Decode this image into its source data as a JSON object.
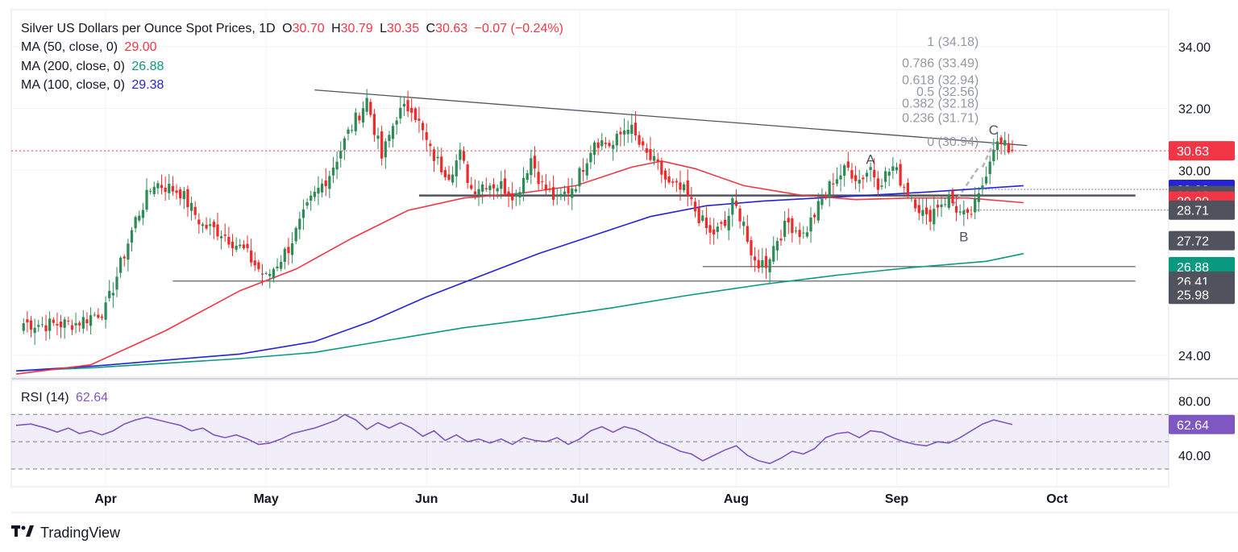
{
  "header": {
    "title": "Silver US Dollars per Ounce Spot Prices, 1D",
    "open_label": "O",
    "open": "30.70",
    "high_label": "H",
    "high": "30.79",
    "low_label": "L",
    "low": "30.35",
    "close_label": "C",
    "close": "30.63",
    "change": "−0.07 (−0.24%)",
    "ma50_label": "MA (50, close, 0)",
    "ma50_value": "29.00",
    "ma200_label": "MA (200, close, 0)",
    "ma200_value": "26.88",
    "ma100_label": "MA (100, close, 0)",
    "ma100_value": "29.38"
  },
  "rsi": {
    "label": "RSI (14)",
    "value": "62.64"
  },
  "brand": "TradingView",
  "colors": {
    "up": "#26a69a",
    "upBody": "#2e8b57",
    "down": "#ef2a2a",
    "ma50": "#f23645",
    "ma100": "#2424d6",
    "ma200": "#089981",
    "rsi": "#7e57c2"
  },
  "chart_data": {
    "type": "candlestick",
    "y_ticks": [
      "34.00",
      "32.00",
      "30.00",
      "24.00"
    ],
    "ylim": [
      23.3,
      35.2
    ],
    "rsi_ticks": [
      "80.00",
      "40.00"
    ],
    "rsi_levels": [
      70,
      50,
      30
    ],
    "x_labels": [
      "Apr",
      "May",
      "Jun",
      "Jul",
      "Aug",
      "Sep",
      "Oct"
    ],
    "x_label_index": [
      24,
      67,
      110,
      151,
      193,
      236,
      279
    ],
    "price_labels": [
      {
        "text": "30.63",
        "value": 30.63,
        "color": "#f23645"
      },
      {
        "text": "29.38",
        "value": 29.38,
        "color": "#2424d6"
      },
      {
        "text": "29.18",
        "value": 29.18,
        "color": "#50535e"
      },
      {
        "text": "29.00",
        "value": 29.0,
        "color": "#f23645"
      },
      {
        "text": "28.71",
        "value": 28.71,
        "color": "#50535e"
      },
      {
        "text": "27.72",
        "value": 27.72,
        "color": "#50535e"
      },
      {
        "text": "26.88",
        "value": 26.88,
        "color": "#089981"
      },
      {
        "text": "26.41",
        "value": 26.41,
        "color": "#50535e"
      },
      {
        "text": "25.98",
        "value": 25.98,
        "color": "#50535e"
      }
    ],
    "fib_levels": [
      {
        "label": "1 (34.18)",
        "value": 34.18
      },
      {
        "label": "0.786 (33.49)",
        "value": 33.49
      },
      {
        "label": "0.618 (32.94)",
        "value": 32.94
      },
      {
        "label": "0.5 (32.56)",
        "value": 32.56
      },
      {
        "label": "0.382 (32.18)",
        "value": 32.18
      },
      {
        "label": "0.236 (31.71)",
        "value": 31.71
      },
      {
        "label": "0 (30.94)",
        "value": 30.94
      }
    ],
    "wave_labels": [
      {
        "text": "A",
        "index": 229,
        "value": 30.2
      },
      {
        "text": "B",
        "index": 254,
        "value": 27.7
      },
      {
        "text": "C",
        "index": 262,
        "value": 31.15
      }
    ],
    "trendline": {
      "from": [
        80,
        32.6
      ],
      "to": [
        271,
        30.8
      ]
    },
    "support_lines": [
      {
        "from": [
          108,
          29.18
        ],
        "to": [
          300,
          29.18
        ],
        "bold": true
      },
      {
        "from": [
          42,
          26.41
        ],
        "to": [
          300,
          26.41
        ],
        "bold": false
      },
      {
        "from": [
          184,
          26.88
        ],
        "to": [
          300,
          26.88
        ],
        "bold": false
      }
    ],
    "swing_points": [
      [
        2,
        25.05
      ],
      [
        8,
        25.0
      ],
      [
        16,
        25.05
      ],
      [
        24,
        25.5
      ],
      [
        29,
        27.3
      ],
      [
        32,
        28.4
      ],
      [
        37,
        29.6
      ],
      [
        44,
        29.3
      ],
      [
        50,
        28.2
      ],
      [
        55,
        28.0
      ],
      [
        61,
        27.4
      ],
      [
        67,
        26.5
      ],
      [
        73,
        27.5
      ],
      [
        79,
        29.0
      ],
      [
        84,
        29.9
      ],
      [
        89,
        31.2
      ],
      [
        94,
        32.3
      ],
      [
        98,
        30.4
      ],
      [
        102,
        31.8
      ],
      [
        106,
        32.1
      ],
      [
        111,
        30.6
      ],
      [
        114,
        30.1
      ],
      [
        116,
        29.9
      ],
      [
        119,
        30.5
      ],
      [
        122,
        29.4
      ],
      [
        126,
        29.6
      ],
      [
        130,
        29.5
      ],
      [
        134,
        29.2
      ],
      [
        138,
        30.4
      ],
      [
        141,
        29.5
      ],
      [
        145,
        29.0
      ],
      [
        150,
        29.6
      ],
      [
        155,
        31.0
      ],
      [
        160,
        30.8
      ],
      [
        164,
        31.5
      ],
      [
        168,
        30.6
      ],
      [
        172,
        30.1
      ],
      [
        175,
        29.5
      ],
      [
        179,
        29.3
      ],
      [
        182,
        28.7
      ],
      [
        186,
        27.9
      ],
      [
        190,
        28.2
      ],
      [
        192,
        28.9
      ],
      [
        195,
        28.4
      ],
      [
        197,
        27.0
      ],
      [
        201,
        27.0
      ],
      [
        204,
        27.8
      ],
      [
        207,
        28.3
      ],
      [
        211,
        27.9
      ],
      [
        215,
        28.8
      ],
      [
        219,
        29.7
      ],
      [
        223,
        30.05
      ],
      [
        226,
        29.7
      ],
      [
        229,
        30.1
      ],
      [
        231,
        29.6
      ],
      [
        235,
        30.1
      ],
      [
        238,
        29.5
      ],
      [
        241,
        29.0
      ],
      [
        244,
        28.4
      ],
      [
        247,
        28.9
      ],
      [
        250,
        29.1
      ],
      [
        253,
        28.6
      ],
      [
        255,
        28.4
      ],
      [
        258,
        29.1
      ],
      [
        260,
        30.0
      ],
      [
        262,
        30.85
      ],
      [
        264,
        30.8
      ],
      [
        267,
        30.63
      ]
    ],
    "ma50": [
      [
        0,
        23.4
      ],
      [
        20,
        23.7
      ],
      [
        40,
        24.8
      ],
      [
        60,
        26.1
      ],
      [
        75,
        26.8
      ],
      [
        90,
        27.8
      ],
      [
        105,
        28.7
      ],
      [
        120,
        29.1
      ],
      [
        135,
        29.25
      ],
      [
        150,
        29.5
      ],
      [
        165,
        30.1
      ],
      [
        173,
        30.3
      ],
      [
        182,
        30.05
      ],
      [
        195,
        29.5
      ],
      [
        210,
        29.2
      ],
      [
        225,
        29.05
      ],
      [
        240,
        29.1
      ],
      [
        255,
        29.1
      ],
      [
        270,
        28.95
      ]
    ],
    "ma100": [
      [
        0,
        23.5
      ],
      [
        20,
        23.65
      ],
      [
        40,
        23.85
      ],
      [
        60,
        24.05
      ],
      [
        80,
        24.45
      ],
      [
        95,
        25.1
      ],
      [
        110,
        25.9
      ],
      [
        125,
        26.6
      ],
      [
        140,
        27.3
      ],
      [
        155,
        27.9
      ],
      [
        170,
        28.5
      ],
      [
        185,
        28.85
      ],
      [
        200,
        29.0
      ],
      [
        215,
        29.1
      ],
      [
        230,
        29.2
      ],
      [
        245,
        29.3
      ],
      [
        270,
        29.5
      ]
    ],
    "ma200": [
      [
        0,
        23.5
      ],
      [
        20,
        23.6
      ],
      [
        40,
        23.75
      ],
      [
        60,
        23.9
      ],
      [
        80,
        24.1
      ],
      [
        100,
        24.5
      ],
      [
        120,
        24.9
      ],
      [
        140,
        25.2
      ],
      [
        160,
        25.55
      ],
      [
        180,
        25.95
      ],
      [
        200,
        26.3
      ],
      [
        220,
        26.6
      ],
      [
        240,
        26.85
      ],
      [
        260,
        27.05
      ],
      [
        270,
        27.3
      ]
    ],
    "rsi_points": [
      [
        0,
        62
      ],
      [
        4,
        63
      ],
      [
        8,
        60
      ],
      [
        11,
        57
      ],
      [
        14,
        60
      ],
      [
        17,
        56
      ],
      [
        20,
        58
      ],
      [
        23,
        55
      ],
      [
        26,
        58
      ],
      [
        29,
        63
      ],
      [
        32,
        66
      ],
      [
        35,
        68
      ],
      [
        38,
        66
      ],
      [
        41,
        64
      ],
      [
        44,
        62
      ],
      [
        47,
        58
      ],
      [
        50,
        60
      ],
      [
        53,
        55
      ],
      [
        56,
        53
      ],
      [
        59,
        55
      ],
      [
        62,
        52
      ],
      [
        65,
        48
      ],
      [
        68,
        49
      ],
      [
        71,
        52
      ],
      [
        74,
        56
      ],
      [
        77,
        58
      ],
      [
        80,
        60
      ],
      [
        83,
        63
      ],
      [
        86,
        66
      ],
      [
        88,
        70
      ],
      [
        91,
        66
      ],
      [
        94,
        59
      ],
      [
        97,
        64
      ],
      [
        100,
        60
      ],
      [
        103,
        64
      ],
      [
        106,
        60
      ],
      [
        109,
        54
      ],
      [
        112,
        58
      ],
      [
        115,
        51
      ],
      [
        118,
        55
      ],
      [
        121,
        50
      ],
      [
        124,
        52
      ],
      [
        127,
        49
      ],
      [
        130,
        52
      ],
      [
        133,
        48
      ],
      [
        136,
        53
      ],
      [
        139,
        51
      ],
      [
        142,
        50
      ],
      [
        145,
        53
      ],
      [
        148,
        48
      ],
      [
        151,
        52
      ],
      [
        154,
        58
      ],
      [
        157,
        61
      ],
      [
        160,
        57
      ],
      [
        163,
        61
      ],
      [
        166,
        59
      ],
      [
        169,
        55
      ],
      [
        172,
        50
      ],
      [
        175,
        47
      ],
      [
        178,
        43
      ],
      [
        181,
        41
      ],
      [
        184,
        36
      ],
      [
        187,
        40
      ],
      [
        190,
        44
      ],
      [
        193,
        47
      ],
      [
        196,
        40
      ],
      [
        199,
        36
      ],
      [
        202,
        34
      ],
      [
        205,
        38
      ],
      [
        208,
        43
      ],
      [
        211,
        41
      ],
      [
        214,
        45
      ],
      [
        217,
        53
      ],
      [
        220,
        56
      ],
      [
        223,
        57
      ],
      [
        226,
        53
      ],
      [
        229,
        58
      ],
      [
        232,
        57
      ],
      [
        235,
        53
      ],
      [
        238,
        50
      ],
      [
        241,
        48
      ],
      [
        244,
        47
      ],
      [
        247,
        50
      ],
      [
        250,
        49
      ],
      [
        253,
        53
      ],
      [
        256,
        58
      ],
      [
        259,
        63
      ],
      [
        262,
        66
      ],
      [
        265,
        64
      ],
      [
        267,
        62.64
      ]
    ]
  }
}
